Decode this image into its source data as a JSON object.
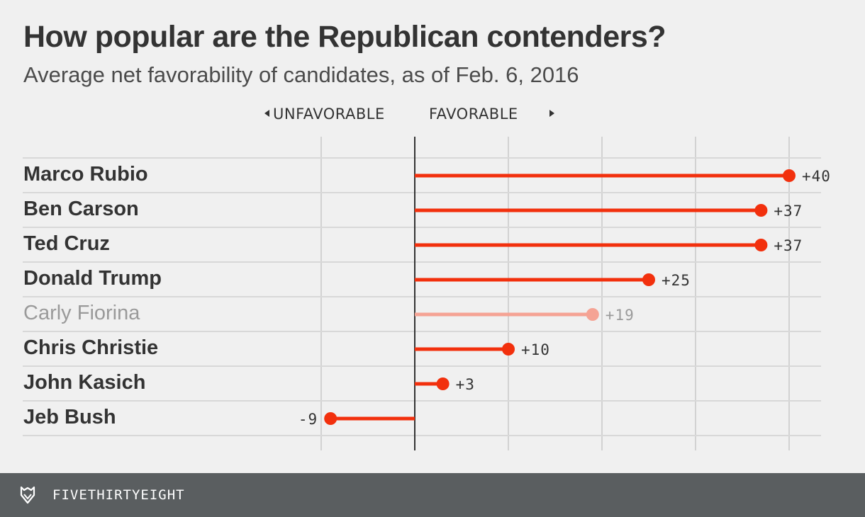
{
  "title": "How popular are the Republican contenders?",
  "subtitle": "Average net favorability of candidates, as of Feb. 6, 2016",
  "footer": {
    "brand": "FIVETHIRTYEIGHT",
    "logo_icon": "fivethirtyeight-fox-icon"
  },
  "colors": {
    "bar": "#f2300d",
    "bar_muted": "#f5a394",
    "background": "#f0f0f0",
    "footer": "#5a5e60"
  },
  "chart_data": {
    "type": "bar",
    "orientation": "horizontal",
    "title": "How popular are the Republican contenders?",
    "subtitle": "Average net favorability of candidates, as of Feb. 6, 2016",
    "direction_labels": {
      "negative": "UNFAVORABLE",
      "positive": "FAVORABLE"
    },
    "xlim": [
      -20,
      40
    ],
    "gridlines": [
      -10,
      10,
      20,
      30,
      40
    ],
    "grid": true,
    "categories": [
      "Marco Rubio",
      "Ben Carson",
      "Ted Cruz",
      "Donald Trump",
      "Carly Fiorina",
      "Chris Christie",
      "John Kasich",
      "Jeb Bush"
    ],
    "values": [
      40,
      37,
      37,
      25,
      19,
      10,
      3,
      -9
    ],
    "value_labels": [
      "+40",
      "+37",
      "+37",
      "+25",
      "+19",
      "+10",
      "+3",
      "-9"
    ],
    "highlight": [
      true,
      true,
      true,
      true,
      false,
      true,
      true,
      true
    ]
  }
}
